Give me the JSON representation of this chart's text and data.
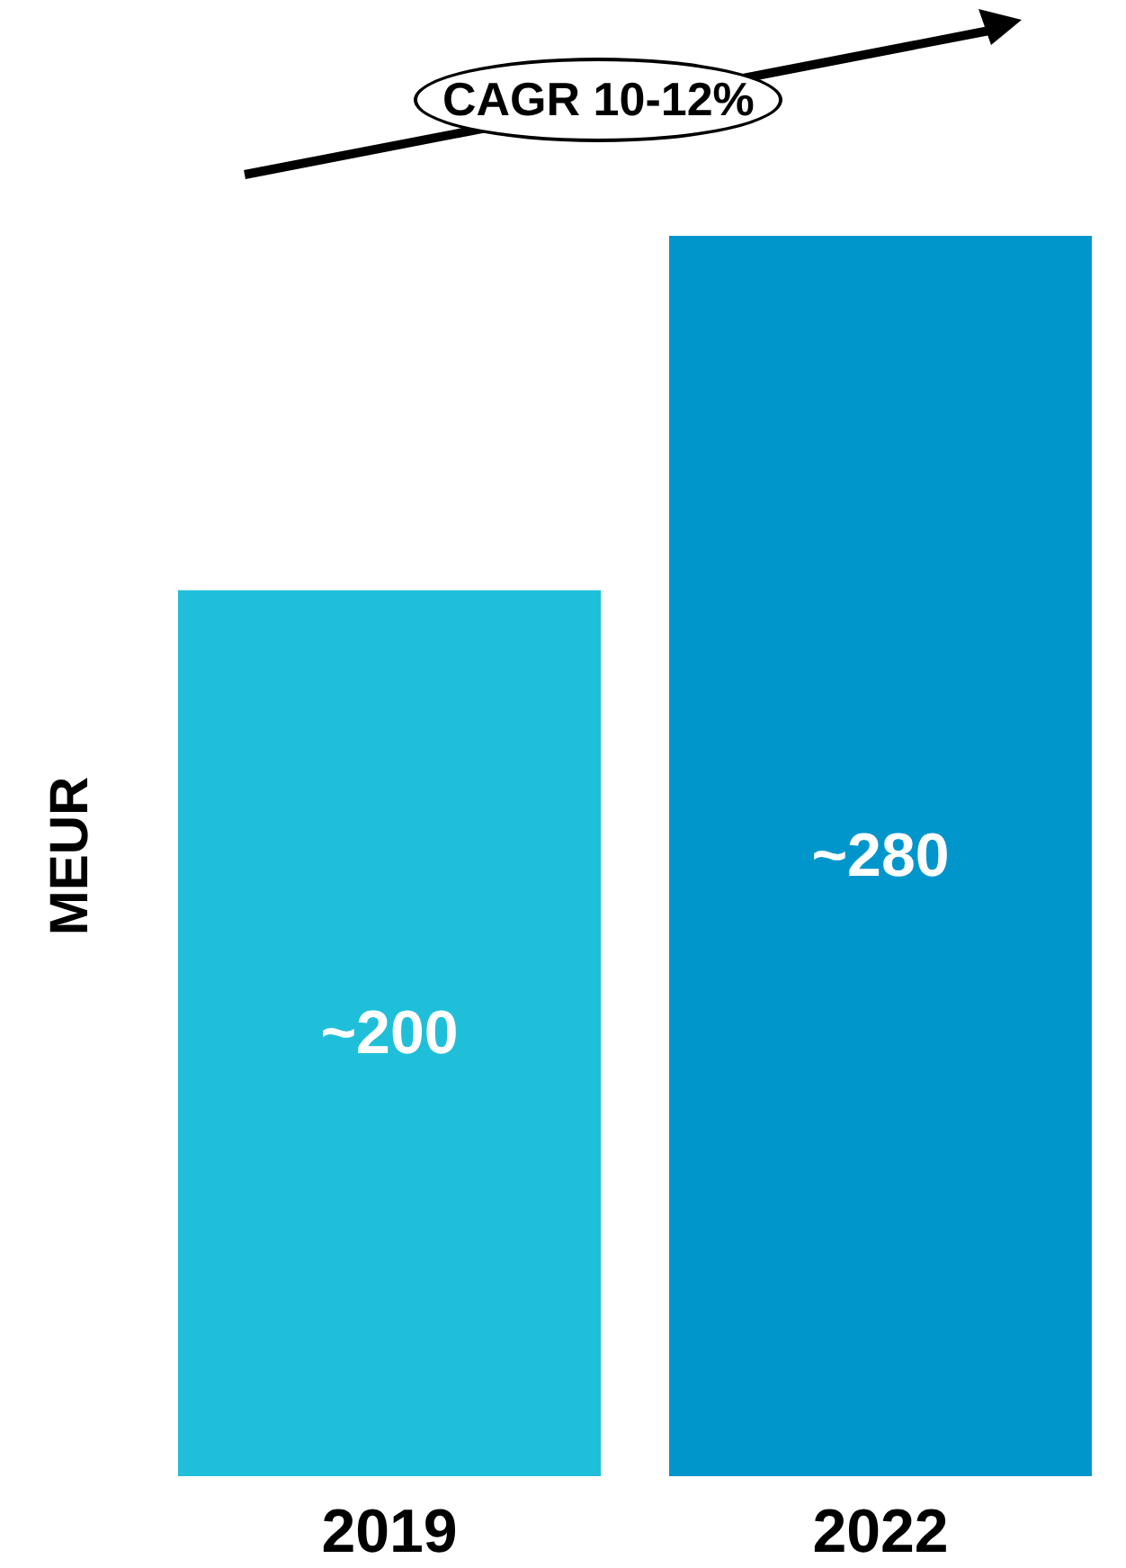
{
  "chart_data": {
    "type": "bar",
    "ylabel": "MEUR",
    "categories": [
      "2019",
      "2022"
    ],
    "values": [
      200,
      280
    ],
    "value_labels": [
      "~200",
      "~280"
    ],
    "colors": [
      "#1fbfd9",
      "#0096cc"
    ],
    "annotations": [
      "CAGR 10-12%"
    ],
    "grid": false
  }
}
